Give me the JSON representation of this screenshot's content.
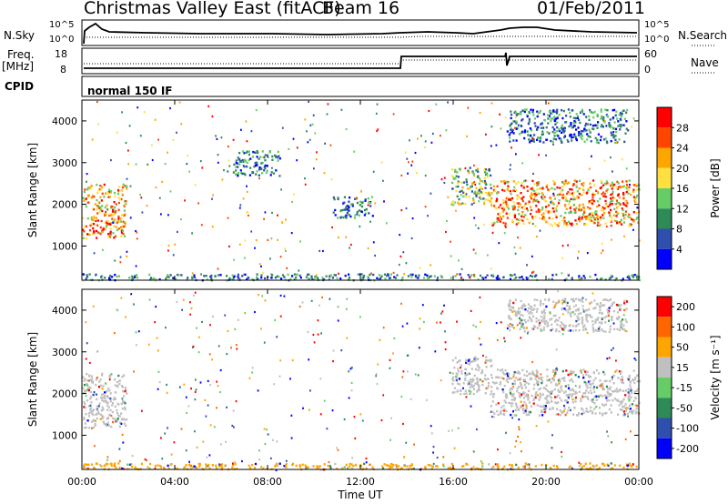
{
  "header": {
    "station": "Christmas Valley East (fitACF)",
    "beam": "Beam 16",
    "date": "01/Feb/2011"
  },
  "top_panels": {
    "nsky_label": "N.Sky",
    "nsky_ticks": [
      "10^5",
      "10^0"
    ],
    "nsearch_label": "N.Search",
    "nsearch_ticks": [
      "10^5",
      "10^0"
    ],
    "freq_label": "Freq.",
    "freq_unit": "[MHz]",
    "freq_ticks": [
      "18",
      "8"
    ],
    "nave_label": "Nave",
    "nave_ticks": [
      "60",
      "0"
    ],
    "cpid_label": "CPID",
    "cpid_value": "normal 150 IF"
  },
  "chart_data": [
    {
      "type": "heatmap",
      "name": "power",
      "ylabel": "Slant Range [km]",
      "xlabel": "Time UT",
      "x_ticks": [
        "00:00",
        "04:00",
        "08:00",
        "12:00",
        "16:00",
        "20:00",
        "00:00"
      ],
      "y_ticks": [
        1000,
        2000,
        3000,
        4000
      ],
      "ylim": [
        180,
        4500
      ],
      "xlim_hours": [
        0,
        24
      ],
      "colorbar": {
        "label": "Power [dB]",
        "ticks": [
          "4",
          "8",
          "12",
          "16",
          "20",
          "24",
          "28"
        ],
        "range": [
          0,
          30
        ],
        "colors": [
          "#0000ff",
          "#2f4faf",
          "#2e8b57",
          "#66cd66",
          "#ffe040",
          "#ffa500",
          "#ff4500",
          "#ff0000"
        ]
      },
      "regions": [
        {
          "t": [
            0.0,
            1.9
          ],
          "r": [
            1200,
            2500
          ],
          "level": "high"
        },
        {
          "t": [
            15.9,
            17.6
          ],
          "r": [
            2000,
            2900
          ],
          "level": "mid"
        },
        {
          "t": [
            17.6,
            24.0
          ],
          "r": [
            1500,
            2600
          ],
          "level": "high"
        },
        {
          "t": [
            18.3,
            23.5
          ],
          "r": [
            3500,
            4300
          ],
          "level": "low"
        },
        {
          "t": [
            10.8,
            12.5
          ],
          "r": [
            1700,
            2200
          ],
          "level": "low"
        },
        {
          "t": [
            6.5,
            8.5
          ],
          "r": [
            2700,
            3300
          ],
          "level": "low"
        },
        {
          "t": [
            0.0,
            24.0
          ],
          "r": [
            200,
            350
          ],
          "level": "low"
        }
      ]
    },
    {
      "type": "heatmap",
      "name": "velocity",
      "ylabel": "Slant Range [km]",
      "xlabel": "Time UT",
      "x_ticks": [
        "00:00",
        "04:00",
        "08:00",
        "12:00",
        "16:00",
        "20:00",
        "00:00"
      ],
      "y_ticks": [
        1000,
        2000,
        3000,
        4000
      ],
      "ylim": [
        180,
        4500
      ],
      "xlim_hours": [
        0,
        24
      ],
      "colorbar": {
        "label": "Velocity [m s⁻¹]",
        "ticks": [
          "200",
          "100",
          "50",
          "15",
          "-15",
          "-50",
          "-100",
          "-200"
        ],
        "colors": [
          "#0000ff",
          "#2f4faf",
          "#2e8b57",
          "#66cd66",
          "#c0c0c0",
          "#ffa500",
          "#ff6600",
          "#ff0000"
        ]
      },
      "regions": [
        {
          "t": [
            0.0,
            1.9
          ],
          "r": [
            1200,
            2500
          ],
          "level": "ground"
        },
        {
          "t": [
            15.9,
            17.6
          ],
          "r": [
            2000,
            2900
          ],
          "level": "ground"
        },
        {
          "t": [
            17.6,
            24.0
          ],
          "r": [
            1500,
            2600
          ],
          "level": "ground"
        },
        {
          "t": [
            18.3,
            23.5
          ],
          "r": [
            3500,
            4300
          ],
          "level": "ground"
        },
        {
          "t": [
            0.0,
            24.0
          ],
          "r": [
            200,
            350
          ],
          "level": "neg"
        }
      ]
    }
  ]
}
